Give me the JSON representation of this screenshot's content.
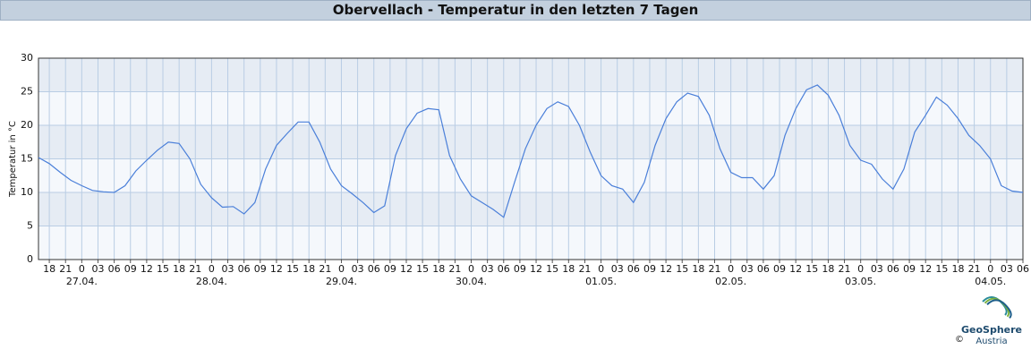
{
  "chart_data": {
    "type": "line",
    "title": "Obervellach - Temperatur in den letzten 7 Tagen",
    "ylabel": "Temperatur in °C",
    "footer": {
      "brand": "GeoSphere",
      "sub": "Austria",
      "copyright": "©"
    },
    "color": "#4a7fd9",
    "grid": true,
    "ylim": [
      0,
      30
    ],
    "yticks": [
      0,
      5,
      10,
      15,
      20,
      25,
      30
    ],
    "xlim": [
      "26.04. 16:00",
      "04.05. 06:00"
    ],
    "xticks": [
      {
        "value": "26.04. 18:00",
        "label": "18"
      },
      {
        "value": "26.04. 21:00",
        "label": "21"
      },
      {
        "value": "27.04. 00:00",
        "label": "0"
      },
      {
        "value": "27.04. 03:00",
        "label": "03"
      },
      {
        "value": "27.04. 06:00",
        "label": "06"
      },
      {
        "value": "27.04. 09:00",
        "label": "09"
      },
      {
        "value": "27.04. 12:00",
        "label": "12"
      },
      {
        "value": "27.04. 15:00",
        "label": "15"
      },
      {
        "value": "27.04. 18:00",
        "label": "18"
      },
      {
        "value": "27.04. 21:00",
        "label": "21"
      },
      {
        "value": "28.04. 00:00",
        "label": "0"
      },
      {
        "value": "28.04. 03:00",
        "label": "03"
      },
      {
        "value": "28.04. 06:00",
        "label": "06"
      },
      {
        "value": "28.04. 09:00",
        "label": "09"
      },
      {
        "value": "28.04. 12:00",
        "label": "12"
      },
      {
        "value": "28.04. 15:00",
        "label": "15"
      },
      {
        "value": "28.04. 18:00",
        "label": "18"
      },
      {
        "value": "28.04. 21:00",
        "label": "21"
      },
      {
        "value": "29.04. 00:00",
        "label": "0"
      },
      {
        "value": "29.04. 03:00",
        "label": "03"
      },
      {
        "value": "29.04. 06:00",
        "label": "06"
      },
      {
        "value": "29.04. 09:00",
        "label": "09"
      },
      {
        "value": "29.04. 12:00",
        "label": "12"
      },
      {
        "value": "29.04. 15:00",
        "label": "15"
      },
      {
        "value": "29.04. 18:00",
        "label": "18"
      },
      {
        "value": "29.04. 21:00",
        "label": "21"
      },
      {
        "value": "30.04. 00:00",
        "label": "0"
      },
      {
        "value": "30.04. 03:00",
        "label": "03"
      },
      {
        "value": "30.04. 06:00",
        "label": "06"
      },
      {
        "value": "30.04. 09:00",
        "label": "09"
      },
      {
        "value": "30.04. 12:00",
        "label": "12"
      },
      {
        "value": "30.04. 15:00",
        "label": "15"
      },
      {
        "value": "30.04. 18:00",
        "label": "18"
      },
      {
        "value": "30.04. 21:00",
        "label": "21"
      },
      {
        "value": "01.05. 00:00",
        "label": "0"
      },
      {
        "value": "01.05. 03:00",
        "label": "03"
      },
      {
        "value": "01.05. 06:00",
        "label": "06"
      },
      {
        "value": "01.05. 09:00",
        "label": "09"
      },
      {
        "value": "01.05. 12:00",
        "label": "12"
      },
      {
        "value": "01.05. 15:00",
        "label": "15"
      },
      {
        "value": "01.05. 18:00",
        "label": "18"
      },
      {
        "value": "01.05. 21:00",
        "label": "21"
      },
      {
        "value": "02.05. 00:00",
        "label": "0"
      },
      {
        "value": "02.05. 03:00",
        "label": "03"
      },
      {
        "value": "02.05. 06:00",
        "label": "06"
      },
      {
        "value": "02.05. 09:00",
        "label": "09"
      },
      {
        "value": "02.05. 12:00",
        "label": "12"
      },
      {
        "value": "02.05. 15:00",
        "label": "15"
      },
      {
        "value": "02.05. 18:00",
        "label": "18"
      },
      {
        "value": "02.05. 21:00",
        "label": "21"
      },
      {
        "value": "03.05. 00:00",
        "label": "0"
      },
      {
        "value": "03.05. 03:00",
        "label": "03"
      },
      {
        "value": "03.05. 06:00",
        "label": "06"
      },
      {
        "value": "03.05. 09:00",
        "label": "09"
      },
      {
        "value": "03.05. 12:00",
        "label": "12"
      },
      {
        "value": "03.05. 15:00",
        "label": "15"
      },
      {
        "value": "03.05. 18:00",
        "label": "18"
      },
      {
        "value": "03.05. 21:00",
        "label": "21"
      },
      {
        "value": "04.05. 00:00",
        "label": "0"
      },
      {
        "value": "04.05. 03:00",
        "label": "03"
      },
      {
        "value": "04.05. 06:00",
        "label": "06"
      }
    ],
    "date_ticks": [
      {
        "value": "27.04. 00:00",
        "label": "27.04."
      },
      {
        "value": "28.04. 00:00",
        "label": "28.04."
      },
      {
        "value": "29.04. 00:00",
        "label": "29.04."
      },
      {
        "value": "30.04. 00:00",
        "label": "30.04."
      },
      {
        "value": "01.05. 00:00",
        "label": "01.05."
      },
      {
        "value": "02.05. 00:00",
        "label": "02.05."
      },
      {
        "value": "03.05. 00:00",
        "label": "03.05."
      },
      {
        "value": "04.05. 00:00",
        "label": "04.05."
      }
    ],
    "x": [
      "26.04. 16:00",
      "26.04. 18:00",
      "26.04. 20:00",
      "26.04. 22:00",
      "27.04. 00:00",
      "27.04. 02:00",
      "27.04. 04:00",
      "27.04. 06:00",
      "27.04. 08:00",
      "27.04. 10:00",
      "27.04. 12:00",
      "27.04. 14:00",
      "27.04. 16:00",
      "27.04. 18:00",
      "27.04. 20:00",
      "27.04. 22:00",
      "28.04. 00:00",
      "28.04. 02:00",
      "28.04. 04:00",
      "28.04. 06:00",
      "28.04. 08:00",
      "28.04. 10:00",
      "28.04. 12:00",
      "28.04. 14:00",
      "28.04. 16:00",
      "28.04. 18:00",
      "28.04. 20:00",
      "28.04. 22:00",
      "29.04. 00:00",
      "29.04. 02:00",
      "29.04. 04:00",
      "29.04. 06:00",
      "29.04. 08:00",
      "29.04. 10:00",
      "29.04. 12:00",
      "29.04. 14:00",
      "29.04. 16:00",
      "29.04. 18:00",
      "29.04. 20:00",
      "29.04. 22:00",
      "30.04. 00:00",
      "30.04. 02:00",
      "30.04. 04:00",
      "30.04. 06:00",
      "30.04. 08:00",
      "30.04. 10:00",
      "30.04. 12:00",
      "30.04. 14:00",
      "30.04. 16:00",
      "30.04. 18:00",
      "30.04. 20:00",
      "30.04. 22:00",
      "01.05. 00:00",
      "01.05. 02:00",
      "01.05. 04:00",
      "01.05. 06:00",
      "01.05. 08:00",
      "01.05. 10:00",
      "01.05. 12:00",
      "01.05. 14:00",
      "01.05. 16:00",
      "01.05. 18:00",
      "01.05. 20:00",
      "01.05. 22:00",
      "02.05. 00:00",
      "02.05. 02:00",
      "02.05. 04:00",
      "02.05. 06:00",
      "02.05. 08:00",
      "02.05. 10:00",
      "02.05. 12:00",
      "02.05. 14:00",
      "02.05. 16:00",
      "02.05. 18:00",
      "02.05. 20:00",
      "02.05. 22:00",
      "03.05. 00:00",
      "03.05. 02:00",
      "03.05. 04:00",
      "03.05. 06:00",
      "03.05. 08:00",
      "03.05. 10:00",
      "03.05. 12:00",
      "03.05. 14:00",
      "03.05. 16:00",
      "03.05. 18:00",
      "03.05. 20:00",
      "03.05. 22:00",
      "04.05. 00:00",
      "04.05. 02:00",
      "04.05. 04:00",
      "04.05. 06:00"
    ],
    "values": [
      15.2,
      14.3,
      13.0,
      11.8,
      11.0,
      10.3,
      10.1,
      10.0,
      11.0,
      13.2,
      14.8,
      16.3,
      17.5,
      17.3,
      15.0,
      11.2,
      9.2,
      7.8,
      7.9,
      6.8,
      8.5,
      13.5,
      17.0,
      18.8,
      20.5,
      20.5,
      17.5,
      13.5,
      11.0,
      9.8,
      8.5,
      7.0,
      8.0,
      15.5,
      19.5,
      21.8,
      22.5,
      22.3,
      15.5,
      12.0,
      9.5,
      8.5,
      7.5,
      6.3,
      11.5,
      16.5,
      20.0,
      22.5,
      23.5,
      22.8,
      20.0,
      16.0,
      12.5,
      11.0,
      10.5,
      8.5,
      11.5,
      17.0,
      21.0,
      23.5,
      24.8,
      24.3,
      21.5,
      16.5,
      13.0,
      12.2,
      12.2,
      10.5,
      12.5,
      18.5,
      22.5,
      25.3,
      26.0,
      24.5,
      21.5,
      17.0,
      14.8,
      14.2,
      12.0,
      10.5,
      13.5,
      19.0,
      21.5,
      24.2,
      23.0,
      21.0,
      18.5,
      17.0,
      15.0,
      11.0,
      10.2,
      10.0
    ]
  }
}
